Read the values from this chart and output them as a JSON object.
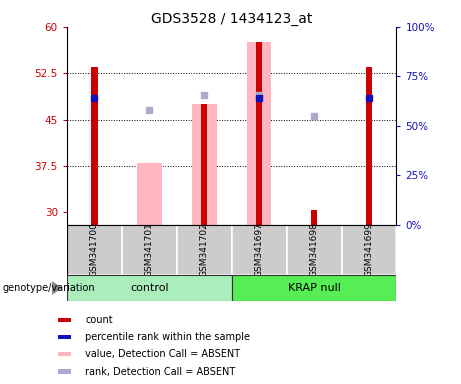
{
  "title": "GDS3528 / 1434123_at",
  "samples": [
    "GSM341700",
    "GSM341701",
    "GSM341702",
    "GSM341697",
    "GSM341698",
    "GSM341699"
  ],
  "ylim_left": [
    28,
    60
  ],
  "ylim_right": [
    0,
    100
  ],
  "yticks_left": [
    30,
    37.5,
    45,
    52.5,
    60
  ],
  "yticks_right": [
    0,
    25,
    50,
    75,
    100
  ],
  "count_color": "#CC0000",
  "rank_color": "#1111BB",
  "absent_value_color": "#FFB6C1",
  "absent_rank_color": "#AAAACC",
  "count_data": [
    53.5,
    null,
    47.5,
    57.5,
    30.4,
    53.5
  ],
  "rank_data": [
    48.5,
    null,
    null,
    48.5,
    null,
    48.5
  ],
  "absent_value_data": [
    null,
    38.0,
    47.5,
    57.5,
    null,
    null
  ],
  "absent_rank_data": [
    null,
    46.5,
    49.0,
    49.0,
    45.5,
    null
  ],
  "tick_color_left": "#CC0000",
  "tick_color_right": "#1111BB",
  "group_split": 3,
  "control_color": "#AAEEBB",
  "krap_color": "#55EE55",
  "sample_bg": "#CCCCCC"
}
